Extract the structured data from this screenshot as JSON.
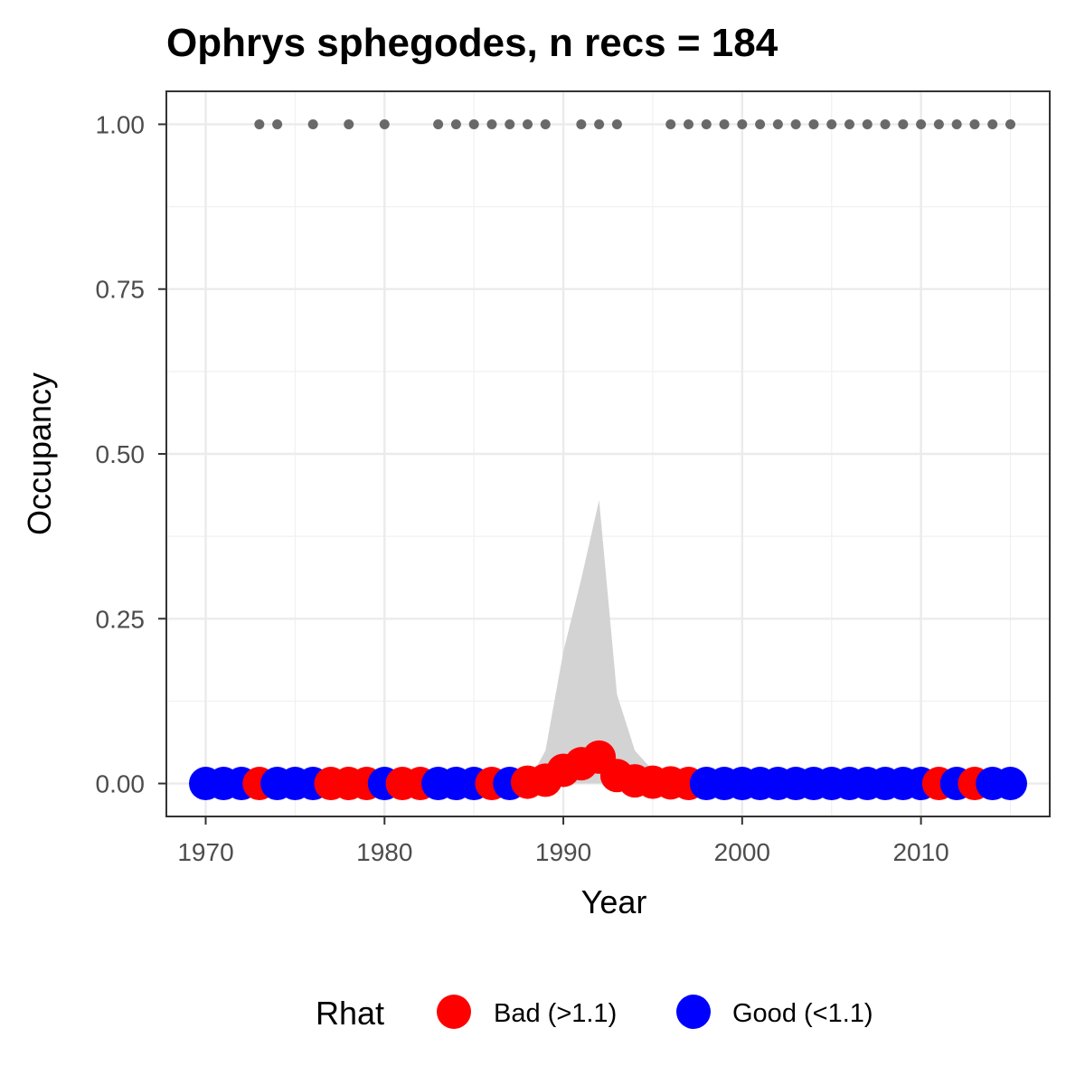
{
  "chart_data": {
    "type": "scatter",
    "title": "Ophrys sphegodes, n recs = 184",
    "xlabel": "Year",
    "ylabel": "Occupancy",
    "xlim": [
      1967.8,
      2017.2
    ],
    "ylim": [
      -0.05,
      1.05
    ],
    "x_ticks": [
      1970,
      1980,
      1990,
      2000,
      2010
    ],
    "x_tick_labels": [
      "1970",
      "1980",
      "1990",
      "2000",
      "2010"
    ],
    "y_ticks": [
      0,
      0.25,
      0.5,
      0.75,
      1.0
    ],
    "y_tick_labels": [
      "0.00",
      "0.25",
      "0.50",
      "0.75",
      "1.00"
    ],
    "grid": true,
    "legend": {
      "title": "Rhat",
      "position": "bottom",
      "entries": [
        {
          "label": "Bad (>1.1)",
          "color": "#ff0000"
        },
        {
          "label": "Good (<1.1)",
          "color": "#0000ff"
        }
      ]
    },
    "colors": {
      "bad": "#ff0000",
      "good": "#0000ff",
      "ribbon": "#d3d3d3",
      "record": "#696969"
    },
    "occupancy": [
      {
        "year": 1970,
        "value": 0.0,
        "rhat": "good"
      },
      {
        "year": 1971,
        "value": 0.0,
        "rhat": "good"
      },
      {
        "year": 1972,
        "value": 0.0,
        "rhat": "good"
      },
      {
        "year": 1973,
        "value": 0.0,
        "rhat": "bad"
      },
      {
        "year": 1974,
        "value": 0.0,
        "rhat": "good"
      },
      {
        "year": 1975,
        "value": 0.0,
        "rhat": "good"
      },
      {
        "year": 1976,
        "value": 0.0,
        "rhat": "good"
      },
      {
        "year": 1977,
        "value": 0.0,
        "rhat": "bad"
      },
      {
        "year": 1978,
        "value": 0.0,
        "rhat": "bad"
      },
      {
        "year": 1979,
        "value": 0.0,
        "rhat": "bad"
      },
      {
        "year": 1980,
        "value": 0.0,
        "rhat": "good"
      },
      {
        "year": 1981,
        "value": 0.0,
        "rhat": "bad"
      },
      {
        "year": 1982,
        "value": 0.0,
        "rhat": "bad"
      },
      {
        "year": 1983,
        "value": 0.0,
        "rhat": "good"
      },
      {
        "year": 1984,
        "value": 0.0,
        "rhat": "good"
      },
      {
        "year": 1985,
        "value": 0.0,
        "rhat": "good"
      },
      {
        "year": 1986,
        "value": 0.0,
        "rhat": "bad"
      },
      {
        "year": 1987,
        "value": 0.0,
        "rhat": "good"
      },
      {
        "year": 1988,
        "value": 0.002,
        "rhat": "bad"
      },
      {
        "year": 1989,
        "value": 0.005,
        "rhat": "bad"
      },
      {
        "year": 1990,
        "value": 0.02,
        "rhat": "bad"
      },
      {
        "year": 1991,
        "value": 0.03,
        "rhat": "bad"
      },
      {
        "year": 1992,
        "value": 0.04,
        "rhat": "bad"
      },
      {
        "year": 1993,
        "value": 0.012,
        "rhat": "bad"
      },
      {
        "year": 1994,
        "value": 0.004,
        "rhat": "bad"
      },
      {
        "year": 1995,
        "value": 0.002,
        "rhat": "bad"
      },
      {
        "year": 1996,
        "value": 0.001,
        "rhat": "bad"
      },
      {
        "year": 1997,
        "value": 0.0,
        "rhat": "bad"
      },
      {
        "year": 1998,
        "value": 0.0,
        "rhat": "good"
      },
      {
        "year": 1999,
        "value": 0.0,
        "rhat": "good"
      },
      {
        "year": 2000,
        "value": 0.0,
        "rhat": "good"
      },
      {
        "year": 2001,
        "value": 0.0,
        "rhat": "good"
      },
      {
        "year": 2002,
        "value": 0.0,
        "rhat": "good"
      },
      {
        "year": 2003,
        "value": 0.0,
        "rhat": "good"
      },
      {
        "year": 2004,
        "value": 0.0,
        "rhat": "good"
      },
      {
        "year": 2005,
        "value": 0.0,
        "rhat": "good"
      },
      {
        "year": 2006,
        "value": 0.0,
        "rhat": "good"
      },
      {
        "year": 2007,
        "value": 0.0,
        "rhat": "good"
      },
      {
        "year": 2008,
        "value": 0.0,
        "rhat": "good"
      },
      {
        "year": 2009,
        "value": 0.0,
        "rhat": "good"
      },
      {
        "year": 2010,
        "value": 0.0,
        "rhat": "good"
      },
      {
        "year": 2011,
        "value": 0.0,
        "rhat": "bad"
      },
      {
        "year": 2012,
        "value": 0.0,
        "rhat": "good"
      },
      {
        "year": 2013,
        "value": 0.0,
        "rhat": "bad"
      },
      {
        "year": 2014,
        "value": 0.0,
        "rhat": "good"
      },
      {
        "year": 2015,
        "value": 0.0,
        "rhat": "good"
      }
    ],
    "credible_interval": [
      {
        "year": 1988,
        "lower": 0.0,
        "upper": 0.0
      },
      {
        "year": 1989,
        "lower": 0.0,
        "upper": 0.05
      },
      {
        "year": 1990,
        "lower": 0.0,
        "upper": 0.2
      },
      {
        "year": 1991,
        "lower": 0.0,
        "upper": 0.31
      },
      {
        "year": 1992,
        "lower": 0.0,
        "upper": 0.43
      },
      {
        "year": 1993,
        "lower": 0.0,
        "upper": 0.135
      },
      {
        "year": 1994,
        "lower": 0.0,
        "upper": 0.05
      },
      {
        "year": 1995,
        "lower": 0.0,
        "upper": 0.02
      },
      {
        "year": 1996,
        "lower": 0.0,
        "upper": 0.008
      },
      {
        "year": 1997,
        "lower": 0.0,
        "upper": 0.002
      },
      {
        "year": 1998,
        "lower": 0.0,
        "upper": 0.0
      }
    ],
    "record_years": [
      1973,
      1974,
      1976,
      1978,
      1980,
      1983,
      1984,
      1985,
      1986,
      1987,
      1988,
      1989,
      1991,
      1992,
      1993,
      1996,
      1997,
      1998,
      1999,
      2000,
      2001,
      2002,
      2003,
      2004,
      2005,
      2006,
      2007,
      2008,
      2009,
      2010,
      2011,
      2012,
      2013,
      2014,
      2015
    ],
    "record_value": 1.0
  }
}
